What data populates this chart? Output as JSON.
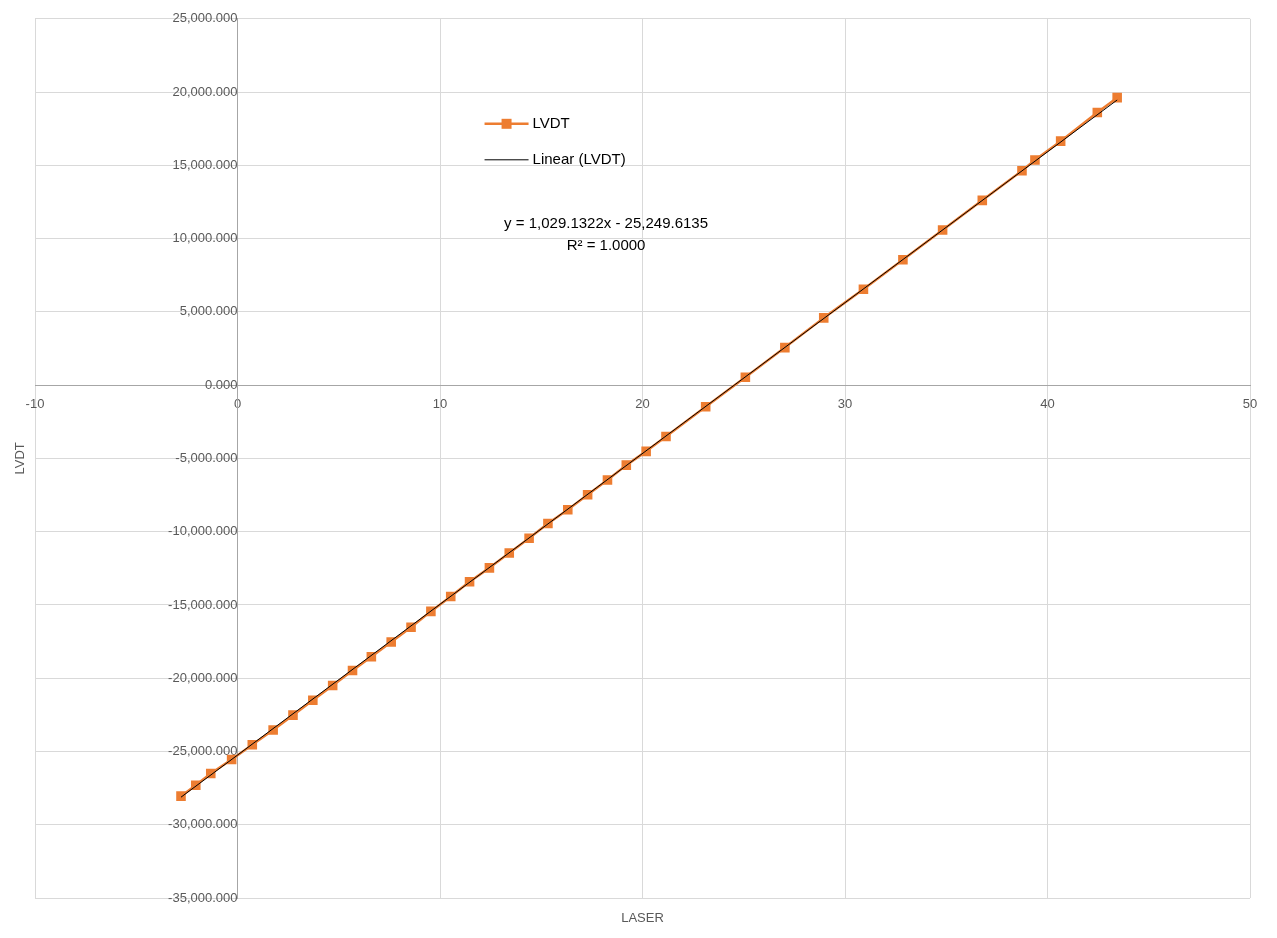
{
  "chart_data": {
    "type": "line",
    "xlabel": "LASER",
    "ylabel": "LVDT",
    "xlim": [
      -10,
      50
    ],
    "xticks": [
      -10,
      0,
      10,
      20,
      30,
      40,
      50
    ],
    "ylim": [
      -35000,
      25000
    ],
    "yticks": [
      {
        "value": -35000,
        "label": "-35,000.000"
      },
      {
        "value": -30000,
        "label": "-30,000.000"
      },
      {
        "value": -25000,
        "label": "-25,000.000"
      },
      {
        "value": -20000,
        "label": "-20,000.000"
      },
      {
        "value": -15000,
        "label": "-15,000.000"
      },
      {
        "value": -10000,
        "label": "-10,000.000"
      },
      {
        "value": -5000,
        "label": "-5,000.000"
      },
      {
        "value": 0,
        "label": "0.000"
      },
      {
        "value": 5000,
        "label": "5,000.000"
      },
      {
        "value": 10000,
        "label": "10,000.000"
      },
      {
        "value": 15000,
        "label": "15,000.000"
      },
      {
        "value": 20000,
        "label": "20,000.000"
      },
      {
        "value": 25000,
        "label": "25,000.000"
      }
    ],
    "grid": true,
    "legend": "top",
    "marker": "square",
    "annotations": [
      "y = 1,029.1322x - 25,249.6135",
      "R² = 1.0000"
    ],
    "series": [
      {
        "name": "LVDT",
        "color": "#ed7d31",
        "x": [
          -2.79,
          -2.06,
          -1.32,
          -0.29,
          0.73,
          1.76,
          2.74,
          3.72,
          4.7,
          5.68,
          6.61,
          7.59,
          8.57,
          9.55,
          10.53,
          11.46,
          12.44,
          13.42,
          14.4,
          15.33,
          16.31,
          17.29,
          18.27,
          19.2,
          20.18,
          21.16,
          23.12,
          25.08,
          27.03,
          28.95,
          30.91,
          32.86,
          34.82,
          36.78,
          38.74,
          39.38,
          40.65,
          42.46,
          43.44
        ],
        "values": [
          -28050,
          -27300,
          -26500,
          -25550,
          -24540,
          -23530,
          -22520,
          -21510,
          -20500,
          -19480,
          -18540,
          -17530,
          -16520,
          -15440,
          -14430,
          -13420,
          -12470,
          -11460,
          -10450,
          -9440,
          -8500,
          -7480,
          -6470,
          -5460,
          -4520,
          -3510,
          -1480,
          540,
          2560,
          4590,
          6540,
          8560,
          10590,
          12610,
          14630,
          15370,
          16650,
          18610,
          19620
        ]
      },
      {
        "name": "Linear (LVDT)",
        "color": "#000000",
        "marker": "none",
        "x": [
          -2.79,
          43.44
        ],
        "values": [
          -28120,
          19460
        ]
      }
    ]
  }
}
